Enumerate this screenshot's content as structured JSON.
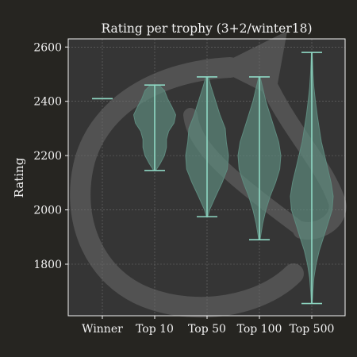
{
  "chart_data": {
    "type": "violin",
    "title": "Rating per trophy (3+2/winter18)",
    "xlabel": "",
    "ylabel": "Rating",
    "ylim": [
      1610,
      2630
    ],
    "yticks": [
      1800,
      2000,
      2200,
      2400,
      2600
    ],
    "grid": true,
    "categories": [
      "Winner",
      "Top 10",
      "Top 50",
      "Top 100",
      "Top 500"
    ],
    "violins": [
      {
        "category": "Winner",
        "min": 2410,
        "max": 2410,
        "density": []
      },
      {
        "category": "Top 10",
        "min": 2145,
        "max": 2460,
        "density": [
          [
            2145,
            0.05
          ],
          [
            2170,
            0.25
          ],
          [
            2200,
            0.45
          ],
          [
            2230,
            0.55
          ],
          [
            2260,
            0.55
          ],
          [
            2290,
            0.65
          ],
          [
            2320,
            0.9
          ],
          [
            2350,
            0.98
          ],
          [
            2380,
            0.8
          ],
          [
            2410,
            0.6
          ],
          [
            2440,
            0.45
          ],
          [
            2460,
            0.2
          ]
        ]
      },
      {
        "category": "Top 50",
        "min": 1975,
        "max": 2490,
        "density": [
          [
            1975,
            0.03
          ],
          [
            2000,
            0.12
          ],
          [
            2050,
            0.4
          ],
          [
            2100,
            0.7
          ],
          [
            2150,
            0.95
          ],
          [
            2200,
            1.0
          ],
          [
            2250,
            0.9
          ],
          [
            2300,
            0.85
          ],
          [
            2350,
            0.6
          ],
          [
            2400,
            0.4
          ],
          [
            2450,
            0.2
          ],
          [
            2490,
            0.05
          ]
        ]
      },
      {
        "category": "Top 100",
        "min": 1890,
        "max": 2490,
        "density": [
          [
            1890,
            0.03
          ],
          [
            1950,
            0.15
          ],
          [
            2000,
            0.3
          ],
          [
            2050,
            0.5
          ],
          [
            2100,
            0.75
          ],
          [
            2150,
            0.95
          ],
          [
            2200,
            1.0
          ],
          [
            2250,
            0.9
          ],
          [
            2300,
            0.7
          ],
          [
            2350,
            0.5
          ],
          [
            2400,
            0.3
          ],
          [
            2450,
            0.15
          ],
          [
            2490,
            0.03
          ]
        ]
      },
      {
        "category": "Top 500",
        "min": 1655,
        "max": 2580,
        "density": [
          [
            1655,
            0.02
          ],
          [
            1700,
            0.05
          ],
          [
            1750,
            0.1
          ],
          [
            1800,
            0.2
          ],
          [
            1850,
            0.35
          ],
          [
            1900,
            0.55
          ],
          [
            1950,
            0.75
          ],
          [
            2000,
            0.95
          ],
          [
            2050,
            1.0
          ],
          [
            2100,
            0.9
          ],
          [
            2150,
            0.75
          ],
          [
            2200,
            0.6
          ],
          [
            2250,
            0.45
          ],
          [
            2300,
            0.35
          ],
          [
            2350,
            0.25
          ],
          [
            2400,
            0.17
          ],
          [
            2450,
            0.1
          ],
          [
            2500,
            0.06
          ],
          [
            2580,
            0.02
          ]
        ]
      }
    ],
    "colors": {
      "background": "#262521",
      "plot_area": "#353535",
      "violin_fill": "#5e8a7e",
      "line": "#8fd8c4",
      "grid": "#6e6e6e",
      "text": "#f2f2f2",
      "watermark": "#6a6a6a"
    }
  }
}
